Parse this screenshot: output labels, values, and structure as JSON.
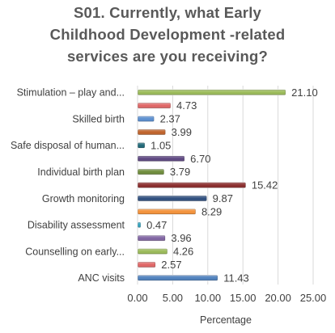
{
  "chart_data": {
    "type": "bar",
    "orientation": "horizontal",
    "title_lines": [
      "S01. Currently, what Early",
      "Childhood Development -related",
      "services are you receiving?"
    ],
    "xlabel": "Percentage",
    "ylabel": "",
    "xlim": [
      0,
      25
    ],
    "xticks": [
      "0.00",
      "5.00",
      "10.00",
      "15.00",
      "20.00",
      "25.00"
    ],
    "grid": true,
    "legend": "none",
    "bars": [
      {
        "label": "Stimulation – play and...",
        "value": 21.1,
        "value_label": "21.10",
        "color": "#9bbb59"
      },
      {
        "label": "",
        "value": 4.73,
        "value_label": "4.73",
        "color": "#e06666"
      },
      {
        "label": "Skilled birth",
        "value": 2.37,
        "value_label": "2.37",
        "color": "#5b8fd0"
      },
      {
        "label": "",
        "value": 3.99,
        "value_label": "3.99",
        "color": "#c0622a"
      },
      {
        "label": "Safe disposal of human...",
        "value": 1.05,
        "value_label": "1.05",
        "color": "#1f6878"
      },
      {
        "label": "",
        "value": 6.7,
        "value_label": "6.70",
        "color": "#5e4781"
      },
      {
        "label": "Individual birth plan",
        "value": 3.79,
        "value_label": "3.79",
        "color": "#6e8c3a"
      },
      {
        "label": "",
        "value": 15.42,
        "value_label": "15.42",
        "color": "#8b2d2d"
      },
      {
        "label": "Growth monitoring",
        "value": 9.87,
        "value_label": "9.87",
        "color": "#2f4f7f"
      },
      {
        "label": "",
        "value": 8.29,
        "value_label": "8.29",
        "color": "#f4923a"
      },
      {
        "label": "Disability assessment",
        "value": 0.47,
        "value_label": "0.47",
        "color": "#31a4c0"
      },
      {
        "label": "",
        "value": 3.96,
        "value_label": "3.96",
        "color": "#8064a2"
      },
      {
        "label": "Counselling on early...",
        "value": 4.26,
        "value_label": "4.26",
        "color": "#9bbb59"
      },
      {
        "label": "",
        "value": 2.57,
        "value_label": "2.57",
        "color": "#e06666"
      },
      {
        "label": "ANC visits",
        "value": 11.43,
        "value_label": "11.43",
        "color": "#4f81bd"
      }
    ]
  }
}
